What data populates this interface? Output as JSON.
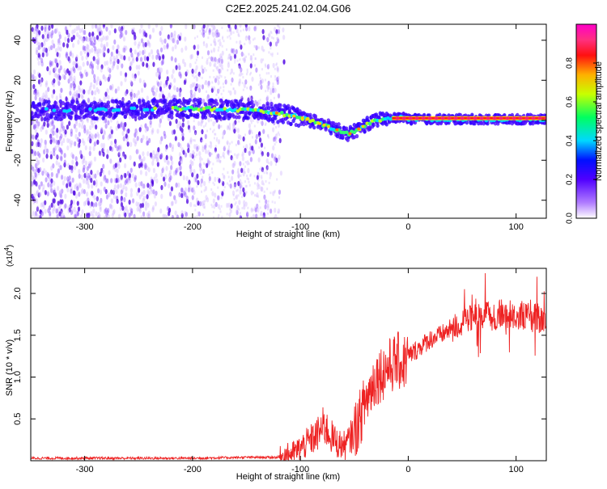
{
  "title": "C2E2.2025.241.02.04.G06",
  "chart_data": [
    {
      "type": "heatmap",
      "xlabel": "Height of straight line (km)",
      "ylabel": "Frequency (Hz)",
      "xlim": [
        -350,
        128
      ],
      "ylim": [
        -49,
        48
      ],
      "x_ticks": [
        -300,
        -200,
        -100,
        0,
        100
      ],
      "x_tick_labels": [
        "-300",
        "-200",
        "-100",
        "0",
        "100"
      ],
      "y_ticks": [
        -40,
        -20,
        0,
        20,
        40
      ],
      "y_tick_labels": [
        "-40",
        "-20",
        "0",
        "20",
        "40"
      ],
      "ridge": {
        "x": [
          -345,
          -300,
          -250,
          -200,
          -150,
          -120,
          -100,
          -80,
          -65,
          -55,
          -45,
          -35,
          -25,
          -15,
          -5,
          0,
          20,
          50,
          80,
          110,
          128
        ],
        "y": [
          5,
          5,
          5.5,
          6,
          5,
          3.5,
          1.5,
          -2,
          -5,
          -7,
          -4,
          -1,
          0.5,
          1,
          1.5,
          0.5,
          0.5,
          0.5,
          0.5,
          0.5,
          0.5
        ]
      },
      "colorbar": {
        "label": "Normalized spectral amplitude",
        "range": [
          0,
          1
        ],
        "ticks": [
          0.0,
          0.2,
          0.4,
          0.6,
          0.8
        ],
        "tick_labels": [
          "0.0",
          "0.2",
          "0.4",
          "0.6",
          "0.8"
        ],
        "colors": [
          "#ffffff",
          "#b07cff",
          "#5000ff",
          "#0010ff",
          "#00d8ff",
          "#00ff60",
          "#c8ff00",
          "#ffb000",
          "#ff1010",
          "#ff3080",
          "#ff00c8"
        ]
      },
      "grid": false,
      "legend": "none"
    },
    {
      "type": "line",
      "xlabel": "Height of straight line (km)",
      "ylabel": "SNR (10 * v/v)",
      "y_multiplier": "(x10",
      "y_multiplier_exp": "4",
      "y_multiplier_close": ")",
      "xlim": [
        -350,
        128
      ],
      "ylim": [
        0,
        2.3
      ],
      "x_ticks": [
        -300,
        -200,
        -100,
        0,
        100
      ],
      "x_tick_labels": [
        "-300",
        "-200",
        "-100",
        "0",
        "100"
      ],
      "y_ticks": [
        0.5,
        1.0,
        1.5,
        2.0
      ],
      "y_tick_labels": [
        "0.5",
        "1.0",
        "1.5",
        "2.0"
      ],
      "series": [
        {
          "color": "#ee2222",
          "x": [
            -350,
            -300,
            -250,
            -200,
            -150,
            -120,
            -105,
            -95,
            -85,
            -78,
            -72,
            -65,
            -58,
            -50,
            -45,
            -40,
            -35,
            -30,
            -25,
            -20,
            -15,
            -10,
            -5,
            0,
            5,
            10,
            20,
            30,
            40,
            50,
            60,
            70,
            80,
            90,
            100,
            110,
            120,
            128
          ],
          "y": [
            0.03,
            0.03,
            0.03,
            0.03,
            0.04,
            0.04,
            0.1,
            0.2,
            0.3,
            0.42,
            0.3,
            0.2,
            0.18,
            0.35,
            0.5,
            0.7,
            0.85,
            1.0,
            1.05,
            1.1,
            1.15,
            1.2,
            1.15,
            1.25,
            1.3,
            1.35,
            1.45,
            1.5,
            1.58,
            1.65,
            1.7,
            1.72,
            1.74,
            1.76,
            1.75,
            1.72,
            1.7,
            1.68
          ]
        }
      ],
      "grid": false,
      "legend": "none"
    }
  ]
}
